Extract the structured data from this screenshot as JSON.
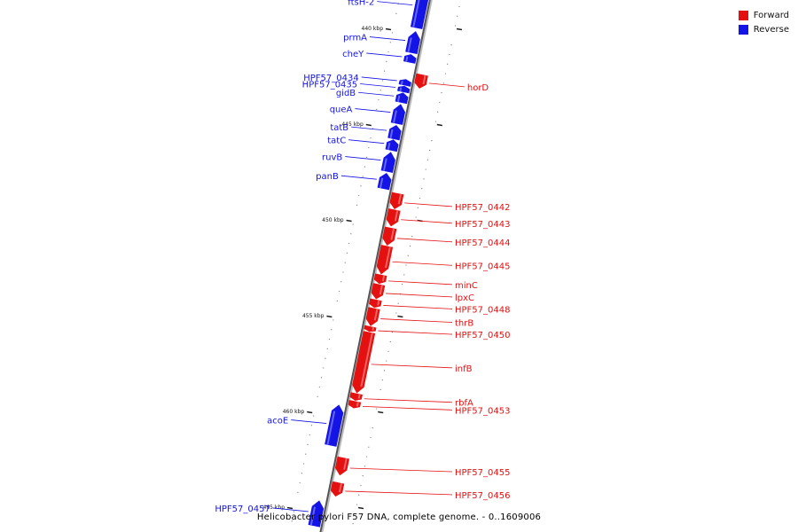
{
  "colors": {
    "forward": "#e51010",
    "reverse": "#1414e6",
    "axis": "#555555",
    "tick": "#222222"
  },
  "legend": {
    "forward_label": "Forward",
    "reverse_label": "Reverse"
  },
  "caption": "Helicobacter pylori F57 DNA, complete genome. - 0..1609006",
  "ticks": [
    {
      "label": "440 kbp",
      "kb": 440
    },
    {
      "label": "445 kbp",
      "kb": 445
    },
    {
      "label": "450 kbp",
      "kb": 450
    },
    {
      "label": "455 kbp",
      "kb": 455
    },
    {
      "label": "460 kbp",
      "kb": 460
    },
    {
      "label": "465 kbp",
      "kb": 465
    }
  ],
  "genes": [
    {
      "name": "ftsH-2",
      "strand": "reverse",
      "start_kb": 437.8,
      "end_kb": 440.0
    },
    {
      "name": "prmA",
      "strand": "reverse",
      "start_kb": 440.2,
      "end_kb": 441.3
    },
    {
      "name": "cheY",
      "strand": "reverse",
      "start_kb": 441.4,
      "end_kb": 441.8
    },
    {
      "name": "HPF57_0434",
      "strand": "reverse",
      "start_kb": 442.7,
      "end_kb": 443.0
    },
    {
      "name": "HPF57_0435",
      "strand": "reverse",
      "start_kb": 443.05,
      "end_kb": 443.35
    },
    {
      "name": "horD",
      "strand": "forward",
      "start_kb": 442.3,
      "end_kb": 443.0
    },
    {
      "name": "gidB",
      "strand": "reverse",
      "start_kb": 443.4,
      "end_kb": 443.9
    },
    {
      "name": "queA",
      "strand": "reverse",
      "start_kb": 444.0,
      "end_kb": 445.0
    },
    {
      "name": "tatB",
      "strand": "reverse",
      "start_kb": 445.1,
      "end_kb": 445.8
    },
    {
      "name": "tatC",
      "strand": "reverse",
      "start_kb": 445.85,
      "end_kb": 446.4
    },
    {
      "name": "ruvB",
      "strand": "reverse",
      "start_kb": 446.5,
      "end_kb": 447.5
    },
    {
      "name": "panB",
      "strand": "reverse",
      "start_kb": 447.6,
      "end_kb": 448.4
    },
    {
      "name": "HPF57_0442",
      "strand": "forward",
      "start_kb": 448.5,
      "end_kb": 449.3
    },
    {
      "name": "HPF57_0443",
      "strand": "forward",
      "start_kb": 449.35,
      "end_kb": 450.2
    },
    {
      "name": "HPF57_0444",
      "strand": "forward",
      "start_kb": 450.3,
      "end_kb": 451.2
    },
    {
      "name": "HPF57_0445",
      "strand": "forward",
      "start_kb": 451.25,
      "end_kb": 452.7
    },
    {
      "name": "minC",
      "strand": "forward",
      "start_kb": 452.75,
      "end_kb": 453.2
    },
    {
      "name": "lpxC",
      "strand": "forward",
      "start_kb": 453.25,
      "end_kb": 454.0
    },
    {
      "name": "HPF57_0448",
      "strand": "forward",
      "start_kb": 454.05,
      "end_kb": 454.45
    },
    {
      "name": "thrB",
      "strand": "forward",
      "start_kb": 454.5,
      "end_kb": 455.4
    },
    {
      "name": "HPF57_0450",
      "strand": "forward",
      "start_kb": 455.45,
      "end_kb": 455.7
    },
    {
      "name": "infB",
      "strand": "forward",
      "start_kb": 455.75,
      "end_kb": 458.9
    },
    {
      "name": "rbfA",
      "strand": "forward",
      "start_kb": 458.95,
      "end_kb": 459.3
    },
    {
      "name": "HPF57_0453",
      "strand": "forward",
      "start_kb": 459.35,
      "end_kb": 459.7
    },
    {
      "name": "acoE",
      "strand": "reverse",
      "start_kb": 459.7,
      "end_kb": 461.8
    },
    {
      "name": "HPF57_0455",
      "strand": "forward",
      "start_kb": 462.3,
      "end_kb": 463.2
    },
    {
      "name": "HPF57_0456",
      "strand": "forward",
      "start_kb": 463.6,
      "end_kb": 464.3
    },
    {
      "name": "HPF57_0457",
      "strand": "reverse",
      "start_kb": 464.7,
      "end_kb": 466.0
    }
  ]
}
